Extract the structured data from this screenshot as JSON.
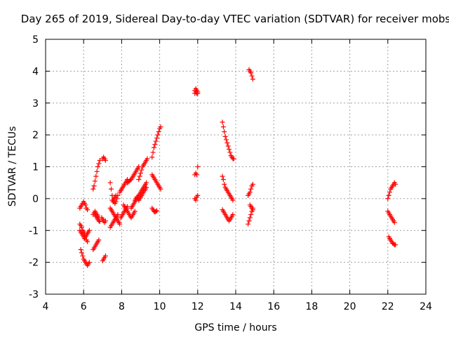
{
  "chart_data": {
    "type": "scatter",
    "title": "Day 265 of 2019, Sidereal Day-to-day VTEC variation (SDTVAR) for receiver mobs",
    "xlabel": "GPS time / hours",
    "ylabel": "SDTVAR / TECUs",
    "xlim": [
      4,
      24
    ],
    "ylim": [
      -3,
      5
    ],
    "xticks": [
      "4",
      "6",
      "8",
      "10",
      "12",
      "14",
      "16",
      "18",
      "20",
      "22",
      "24"
    ],
    "yticks": [
      "-3",
      "-2",
      "-1",
      "0",
      "1",
      "2",
      "3",
      "4",
      "5"
    ],
    "grid": true,
    "marker": "+",
    "color": "#ff0000",
    "series": [
      {
        "name": "SDTVAR",
        "x": [
          5.8,
          5.85,
          5.9,
          5.95,
          6.0,
          6.05,
          6.1,
          6.15,
          6.2,
          5.8,
          5.85,
          5.9,
          5.95,
          6.0,
          6.05,
          6.1,
          6.15,
          6.2,
          6.25,
          6.3,
          5.85,
          5.9,
          5.95,
          6.0,
          6.05,
          6.1,
          6.15,
          6.2,
          6.25,
          6.3,
          5.8,
          5.85,
          5.9,
          5.95,
          6.0,
          6.05,
          6.1,
          6.15,
          6.2,
          6.5,
          6.55,
          6.6,
          6.65,
          6.7,
          6.75,
          6.8,
          6.5,
          6.55,
          6.6,
          6.65,
          6.7,
          6.75,
          6.8,
          6.5,
          6.55,
          6.6,
          6.65,
          6.7,
          6.75,
          6.8,
          6.85,
          6.6,
          6.65,
          6.7,
          6.75,
          6.8,
          6.85,
          7.0,
          7.05,
          7.1,
          7.15,
          7.0,
          7.05,
          7.1,
          7.15,
          6.95,
          7.0,
          7.05,
          7.1,
          7.15,
          7.4,
          7.45,
          7.5,
          7.55,
          7.6,
          7.65,
          7.7,
          7.75,
          7.8,
          7.4,
          7.45,
          7.5,
          7.55,
          7.6,
          7.65,
          7.7,
          7.75,
          7.8,
          7.4,
          7.45,
          7.5,
          7.55,
          7.6,
          7.65,
          7.7,
          7.75,
          7.8,
          7.85,
          7.9,
          7.5,
          7.55,
          7.6,
          7.65,
          7.7,
          7.9,
          7.95,
          8.0,
          8.05,
          8.1,
          8.15,
          8.2,
          8.25,
          8.3,
          7.95,
          8.0,
          8.05,
          8.1,
          8.15,
          8.2,
          8.25,
          8.3,
          8.1,
          8.15,
          8.2,
          8.25,
          8.3,
          8.35,
          8.4,
          8.45,
          8.5,
          8.55,
          8.6,
          8.65,
          8.7,
          8.3,
          8.35,
          8.4,
          8.45,
          8.5,
          8.55,
          8.6,
          8.65,
          8.7,
          8.75,
          8.8,
          8.85,
          8.9,
          8.5,
          8.55,
          8.6,
          8.65,
          8.7,
          8.75,
          8.8,
          8.85,
          8.9,
          8.95,
          9.0,
          9.05,
          9.1,
          9.15,
          9.2,
          9.25,
          9.3,
          8.7,
          8.75,
          8.8,
          8.85,
          8.9,
          8.95,
          9.0,
          9.05,
          9.1,
          9.15,
          9.2,
          9.25,
          9.3,
          8.9,
          8.95,
          9.0,
          9.05,
          9.1,
          9.15,
          9.2,
          9.25,
          9.3,
          9.35,
          9.6,
          9.65,
          9.7,
          9.75,
          9.8,
          9.85,
          9.9,
          9.95,
          10.0,
          10.05,
          9.6,
          9.65,
          9.7,
          9.75,
          9.8,
          9.85,
          9.9,
          9.95,
          10.0,
          10.05,
          9.6,
          9.65,
          9.7,
          9.75,
          9.8,
          9.85,
          11.85,
          11.9,
          11.95,
          12.0,
          11.85,
          11.9,
          11.95,
          12.0,
          11.85,
          11.9,
          11.95,
          12.0,
          11.85,
          11.9,
          11.95,
          12.0,
          13.3,
          13.35,
          13.4,
          13.45,
          13.5,
          13.55,
          13.6,
          13.65,
          13.7,
          13.75,
          13.8,
          13.85,
          13.9,
          13.3,
          13.35,
          13.4,
          13.45,
          13.5,
          13.55,
          13.6,
          13.65,
          13.7,
          13.75,
          13.8,
          13.85,
          13.3,
          13.35,
          13.4,
          13.45,
          13.5,
          13.55,
          13.6,
          13.65,
          13.7,
          13.75,
          13.8,
          13.85,
          14.7,
          14.75,
          14.8,
          14.85,
          14.9,
          14.65,
          14.7,
          14.75,
          14.8,
          14.85,
          14.9,
          14.65,
          14.7,
          14.75,
          14.8,
          14.85,
          14.9,
          14.75,
          14.8,
          14.85,
          14.9,
          22.0,
          22.05,
          22.1,
          22.15,
          22.2,
          22.25,
          22.3,
          22.35,
          22.4,
          22.0,
          22.05,
          22.1,
          22.15,
          22.2,
          22.25,
          22.3,
          22.35,
          22.05,
          22.1,
          22.15,
          22.2,
          22.25,
          22.3,
          22.35,
          22.4
        ],
        "y": [
          -0.3,
          -0.25,
          -0.2,
          -0.15,
          -0.1,
          -0.15,
          -0.2,
          -0.3,
          -0.35,
          -1.0,
          -1.05,
          -1.1,
          -1.15,
          -1.2,
          -1.25,
          -1.2,
          -1.15,
          -1.1,
          -1.05,
          -1.0,
          -1.6,
          -1.7,
          -1.8,
          -1.9,
          -1.95,
          -2.0,
          -2.05,
          -2.1,
          -2.05,
          -2.0,
          -0.8,
          -0.85,
          -0.9,
          -1.0,
          -1.05,
          -1.1,
          -1.2,
          -1.3,
          -1.35,
          -0.5,
          -0.45,
          -0.4,
          -0.45,
          -0.5,
          -0.55,
          -0.6,
          -1.6,
          -1.55,
          -1.5,
          -1.45,
          -1.4,
          -1.35,
          -1.3,
          0.3,
          0.4,
          0.55,
          0.7,
          0.85,
          1.0,
          1.1,
          1.2,
          -0.5,
          -0.55,
          -0.6,
          -0.65,
          -0.7,
          -0.72,
          1.25,
          1.3,
          1.25,
          1.2,
          -1.95,
          -1.9,
          -1.85,
          -1.8,
          -0.6,
          -0.65,
          -0.7,
          -0.75,
          -0.7,
          0.5,
          0.3,
          0.1,
          -0.05,
          -0.1,
          -0.15,
          -0.1,
          0.0,
          0.1,
          -0.9,
          -0.85,
          -0.8,
          -0.75,
          -0.7,
          -0.65,
          -0.6,
          -0.55,
          -0.5,
          -0.3,
          -0.35,
          -0.4,
          -0.45,
          -0.5,
          -0.55,
          -0.6,
          -0.65,
          -0.7,
          -0.75,
          -0.8,
          -0.05,
          -0.1,
          0.0,
          0.05,
          0.1,
          0.2,
          0.25,
          0.3,
          0.35,
          0.4,
          0.45,
          0.5,
          0.55,
          0.6,
          -0.6,
          -0.55,
          -0.5,
          -0.45,
          -0.4,
          -0.35,
          -0.3,
          -0.25,
          -0.2,
          -0.25,
          -0.3,
          -0.35,
          -0.4,
          -0.45,
          -0.5,
          -0.55,
          -0.6,
          -0.55,
          -0.5,
          -0.45,
          -0.4,
          0.5,
          0.52,
          0.55,
          0.58,
          0.6,
          0.65,
          0.7,
          0.75,
          0.8,
          0.85,
          0.9,
          0.95,
          1.0,
          -0.3,
          -0.25,
          -0.2,
          -0.15,
          -0.1,
          -0.05,
          0.0,
          0.05,
          0.1,
          0.15,
          0.2,
          0.25,
          0.3,
          0.35,
          0.4,
          0.45,
          0.5,
          -0.05,
          0.0,
          0.05,
          0.0,
          -0.05,
          0.0,
          0.05,
          0.1,
          0.15,
          0.2,
          0.25,
          0.3,
          0.35,
          0.6,
          0.7,
          0.8,
          0.9,
          1.0,
          1.05,
          1.1,
          1.15,
          1.2,
          1.25,
          1.3,
          1.45,
          1.6,
          1.7,
          1.8,
          1.9,
          2.0,
          2.1,
          2.2,
          2.25,
          0.75,
          0.7,
          0.65,
          0.6,
          0.55,
          0.5,
          0.45,
          0.4,
          0.35,
          0.3,
          -0.3,
          -0.35,
          -0.4,
          -0.42,
          -0.4,
          -0.38,
          3.4,
          3.45,
          3.4,
          3.35,
          0.75,
          0.8,
          0.75,
          1.0,
          0.0,
          -0.05,
          0.05,
          0.1,
          3.3,
          3.35,
          3.3,
          3.3,
          2.4,
          2.25,
          2.1,
          1.95,
          1.85,
          1.75,
          1.65,
          1.55,
          1.45,
          1.35,
          1.3,
          1.25,
          1.25,
          0.7,
          0.6,
          0.45,
          0.35,
          0.3,
          0.25,
          0.2,
          0.15,
          0.1,
          0.05,
          0.0,
          -0.05,
          -0.35,
          -0.4,
          -0.45,
          -0.5,
          -0.55,
          -0.6,
          -0.65,
          -0.7,
          -0.65,
          -0.6,
          -0.55,
          -0.5,
          4.05,
          4.0,
          3.95,
          3.85,
          3.75,
          -0.8,
          -0.7,
          -0.6,
          -0.5,
          -0.4,
          -0.3,
          0.1,
          0.15,
          0.2,
          0.3,
          0.4,
          0.45,
          -0.2,
          -0.25,
          -0.3,
          -0.35,
          0.0,
          0.1,
          0.2,
          0.3,
          0.35,
          0.4,
          0.45,
          0.5,
          0.45,
          -0.4,
          -0.45,
          -0.5,
          -0.55,
          -0.6,
          -0.65,
          -0.7,
          -0.75,
          -1.2,
          -1.25,
          -1.3,
          -1.35,
          -1.4,
          -1.42,
          -1.45,
          -1.45
        ]
      }
    ]
  }
}
